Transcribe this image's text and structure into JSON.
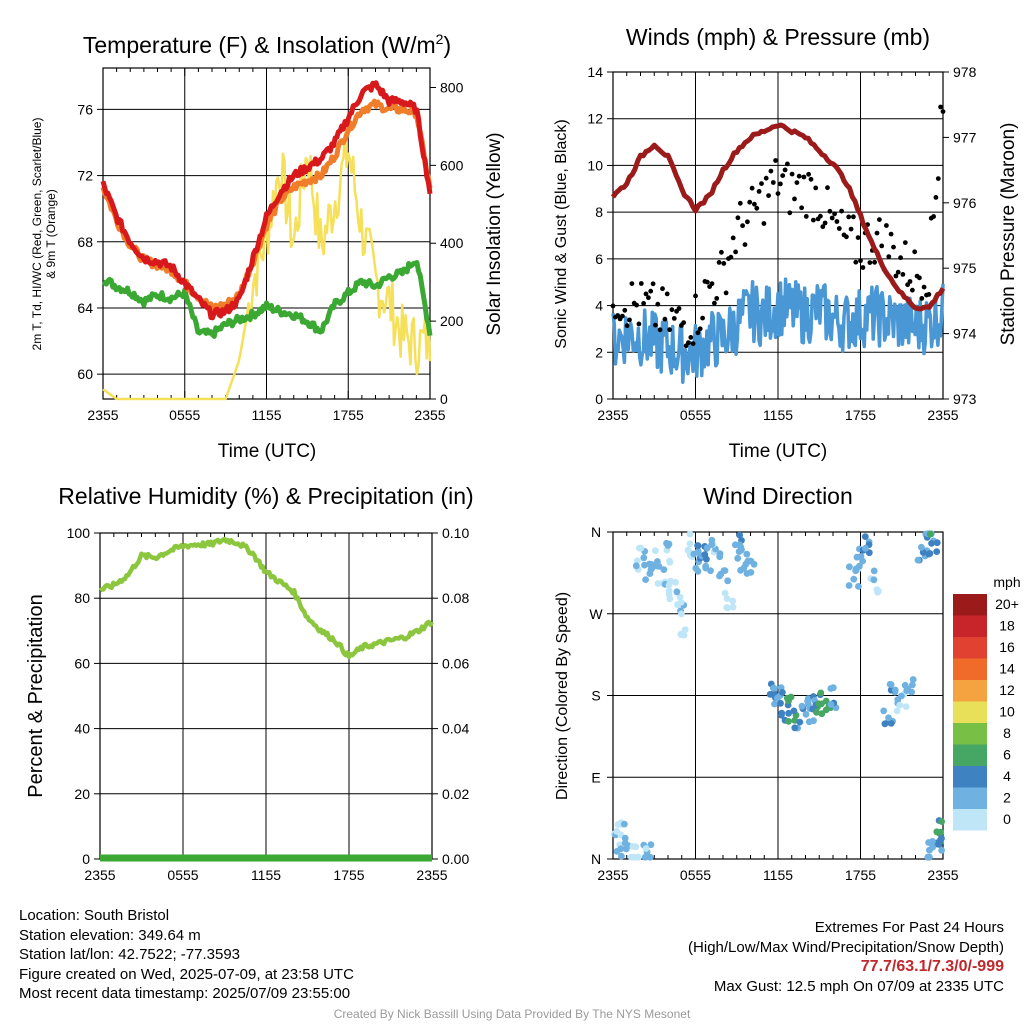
{
  "colors": {
    "temp": "#d7191c",
    "dewpoint": "#3aa832",
    "temp9m": "#f07d2a",
    "insolation": "#f6e05a",
    "rh": "#8cc63e",
    "precip": "#3aa832",
    "wind": "#4a97d6",
    "gust": "#000000",
    "pressure": "#9b1b1b",
    "extremes": "#c0282c"
  },
  "time_ticks": [
    "2355",
    "0555",
    "1155",
    "1755",
    "2355"
  ],
  "chart_data": [
    {
      "type": "line",
      "title": "Temperature (F) & Insolation (W/m²)",
      "title_text": "Temperature (F) & Insolation (W/m",
      "title_sup": "2",
      "title_close": ")",
      "xlabel": "Time (UTC)",
      "ylabel_left_lines": [
        "2m T, Td, HI/WC (Red, Green, Scarlet/Blue)",
        "& 9m T (Orange)"
      ],
      "ylabel_right": "Solar Insolation (Yellow)",
      "ylim_left": [
        58.5,
        78.5
      ],
      "ylim_right": [
        0,
        850
      ],
      "yticks_left": [
        "60",
        "64",
        "68",
        "72",
        "76"
      ],
      "yticks_right": [
        "0",
        "200",
        "400",
        "600",
        "800"
      ],
      "x_hours": [
        0,
        1,
        2,
        3,
        4,
        5,
        6,
        7,
        8,
        9,
        10,
        11,
        12,
        13,
        14,
        15,
        16,
        17,
        18,
        19,
        20,
        21,
        22,
        23,
        24
      ],
      "series": [
        {
          "key": "temp",
          "values": [
            71.5,
            69.5,
            68,
            67,
            66.8,
            66.5,
            65.5,
            64.5,
            63.6,
            63.8,
            64.5,
            67,
            69.5,
            71,
            72,
            72.5,
            73,
            74,
            75.5,
            77,
            77.5,
            76.5,
            76.5,
            76,
            71
          ]
        },
        {
          "key": "temp9m",
          "values": [
            71.3,
            69.3,
            67.8,
            66.9,
            66.6,
            66.3,
            65.5,
            64.7,
            64,
            64.2,
            64.8,
            66.8,
            69,
            70.5,
            71.3,
            71.7,
            72,
            73.2,
            74.8,
            76,
            76.3,
            76,
            76,
            75.8,
            71.2
          ]
        },
        {
          "key": "dewpoint",
          "values": [
            65.8,
            65.3,
            65,
            64.4,
            64.8,
            64.6,
            64.9,
            62.5,
            62.4,
            63,
            63.3,
            63.6,
            64.1,
            63.8,
            63.6,
            63.2,
            62.6,
            64.2,
            64.9,
            65.6,
            65.3,
            65.9,
            66.1,
            67,
            62.5
          ]
        },
        {
          "key": "insolation",
          "values": [
            25,
            0,
            0,
            0,
            0,
            0,
            0,
            0,
            0,
            0,
            100,
            300,
            420,
            600,
            400,
            640,
            390,
            510,
            640,
            440,
            300,
            250,
            160,
            140,
            150
          ]
        }
      ]
    },
    {
      "type": "scatter",
      "title": "Winds (mph) & Pressure (mb)",
      "xlabel": "Time (UTC)",
      "ylabel_left": "Sonic Wind & Gust (Blue, Black)",
      "ylabel_right": "Station Pressure (Maroon)",
      "ylim_left": [
        0,
        14
      ],
      "ylim_right": [
        973,
        978
      ],
      "yticks_left": [
        "0",
        "2",
        "4",
        "6",
        "8",
        "10",
        "12",
        "14"
      ],
      "yticks_right": [
        "973",
        "974",
        "975",
        "976",
        "977",
        "978"
      ],
      "x_hours": [
        0,
        1,
        2,
        3,
        4,
        5,
        6,
        7,
        8,
        9,
        10,
        11,
        12,
        13,
        14,
        15,
        16,
        17,
        18,
        19,
        20,
        21,
        22,
        23,
        24
      ],
      "series": [
        {
          "key": "wind",
          "values": [
            2.5,
            2.8,
            2.7,
            2.4,
            2.2,
            2,
            2,
            2.5,
            2.6,
            3.2,
            3.8,
            3.5,
            4,
            3.8,
            3.6,
            3.9,
            3.4,
            3.3,
            3.5,
            3.6,
            3.4,
            3.3,
            3.1,
            3.3,
            3.7
          ]
        },
        {
          "key": "gust",
          "values": [
            4.5,
            4.2,
            3.9,
            3.8,
            3.4,
            3.2,
            3.5,
            4.8,
            5.3,
            7.2,
            7.8,
            8.7,
            9.4,
            8.9,
            9,
            8.6,
            7.4,
            6.8,
            6.5,
            6.9,
            6.6,
            5.8,
            5.4,
            5.6,
            12.5
          ]
        },
        {
          "key": "pressure",
          "values": [
            976.1,
            976.3,
            976.7,
            976.9,
            976.7,
            976.2,
            975.9,
            976.1,
            976.5,
            976.8,
            977.0,
            977.1,
            977.2,
            977.1,
            977.0,
            976.8,
            976.6,
            976.3,
            975.8,
            975.3,
            974.9,
            974.6,
            974.4,
            974.4,
            974.7
          ]
        }
      ]
    },
    {
      "type": "line",
      "title": "Relative Humidity (%) & Precipitation (in)",
      "ylabel": "Percent & Precipitation",
      "ylim_left": [
        0,
        100
      ],
      "ylim_right": [
        0,
        0.1
      ],
      "yticks_left": [
        "0",
        "20",
        "40",
        "60",
        "80",
        "100"
      ],
      "yticks_right": [
        "0.00",
        "0.02",
        "0.04",
        "0.06",
        "0.08",
        "0.10"
      ],
      "x_hours": [
        0,
        1,
        2,
        3,
        4,
        5,
        6,
        7,
        8,
        9,
        10,
        11,
        12,
        13,
        14,
        15,
        16,
        17,
        18,
        19,
        20,
        21,
        22,
        23,
        24
      ],
      "series": [
        {
          "key": "rh",
          "values": [
            82.5,
            84,
            87,
            93,
            92.5,
            94.5,
            96,
            96.5,
            96.5,
            98,
            97,
            94,
            88,
            85,
            82,
            74,
            70,
            67,
            62,
            65,
            66,
            67,
            68,
            70,
            73
          ]
        },
        {
          "key": "precip",
          "values": [
            0,
            0,
            0,
            0,
            0,
            0,
            0,
            0,
            0,
            0,
            0,
            0,
            0,
            0,
            0,
            0,
            0,
            0,
            0,
            0,
            0,
            0,
            0,
            0,
            0
          ]
        }
      ]
    },
    {
      "type": "scatter",
      "title": "Wind Direction",
      "ylabel": "Direction (Colored By Speed)",
      "yticks_labels": [
        "N",
        "E",
        "S",
        "W",
        "N"
      ],
      "ylim": [
        0,
        360
      ],
      "x_hours_range": [
        0,
        24
      ],
      "points": [
        [
          0.3,
          20,
          1.5
        ],
        [
          0.6,
          35,
          2
        ],
        [
          0.9,
          15,
          3
        ],
        [
          1.5,
          3,
          1
        ],
        [
          2.5,
          5,
          2
        ],
        [
          2,
          330,
          2
        ],
        [
          2.5,
          320,
          3
        ],
        [
          3,
          330,
          2.5
        ],
        [
          3.5,
          315,
          2
        ],
        [
          4,
          335,
          1.5
        ],
        [
          4.4,
          300,
          1
        ],
        [
          4.8,
          285,
          2
        ],
        [
          5.2,
          260,
          1.5
        ],
        [
          5.6,
          345,
          0.5
        ],
        [
          6,
          330,
          3
        ],
        [
          6.5,
          345,
          4.5
        ],
        [
          7,
          330,
          3.5
        ],
        [
          7.5,
          340,
          2.5
        ],
        [
          8,
          320,
          3
        ],
        [
          8.5,
          290,
          1
        ],
        [
          9,
          345,
          4
        ],
        [
          9.5,
          330,
          3
        ],
        [
          10,
          320,
          2
        ],
        [
          11.5,
          185,
          4.5
        ],
        [
          12,
          175,
          4
        ],
        [
          12.5,
          160,
          5
        ],
        [
          13,
          165,
          6.5
        ],
        [
          13.5,
          155,
          4.5
        ],
        [
          14,
          170,
          3.5
        ],
        [
          14.5,
          165,
          4
        ],
        [
          15,
          170,
          6
        ],
        [
          15.5,
          160,
          7
        ],
        [
          16,
          175,
          3.5
        ],
        [
          17.5,
          310,
          2.5
        ],
        [
          18,
          330,
          3
        ],
        [
          18.5,
          345,
          4
        ],
        [
          19,
          305,
          2
        ],
        [
          20,
          150,
          4
        ],
        [
          20.5,
          180,
          3.5
        ],
        [
          21,
          175,
          2
        ],
        [
          21.5,
          185,
          3
        ],
        [
          22.5,
          335,
          3.5
        ],
        [
          23,
          350,
          4
        ],
        [
          23.3,
          345,
          6
        ],
        [
          23.6,
          30,
          6.5
        ],
        [
          23.8,
          15,
          4
        ],
        [
          23.2,
          8,
          3
        ]
      ],
      "legend_title": "mph",
      "legend_labels": [
        "20+",
        "18",
        "16",
        "14",
        "12",
        "10",
        "8",
        "6",
        "4",
        "2",
        "0"
      ],
      "legend_colors": [
        "#9b1b1b",
        "#c8252a",
        "#e04130",
        "#f06a2a",
        "#f4a340",
        "#e9e05a",
        "#78bf46",
        "#46a664",
        "#3f82c2",
        "#6fb1e0",
        "#bfe6f7"
      ]
    }
  ],
  "footer": {
    "location": "Location: South Bristol",
    "elevation": "Station elevation: 349.64 m",
    "latlon": "Station lat/lon: 42.7522; -77.3593",
    "created": "Figure created on Wed, 2025-07-09, at 23:58 UTC",
    "recent": "Most recent data timestamp: 2025/07/09 23:55:00",
    "extremes_title": "Extremes For Past 24 Hours",
    "extremes_desc": "(High/Low/Max Wind/Precipitation/Snow Depth)",
    "extremes_values": "77.7/63.1/7.3/0/-999",
    "max_gust": "Max Gust: 12.5 mph On 07/09 at 2335 UTC",
    "credit": "Created By Nick Bassill Using Data Provided By The NYS Mesonet"
  }
}
